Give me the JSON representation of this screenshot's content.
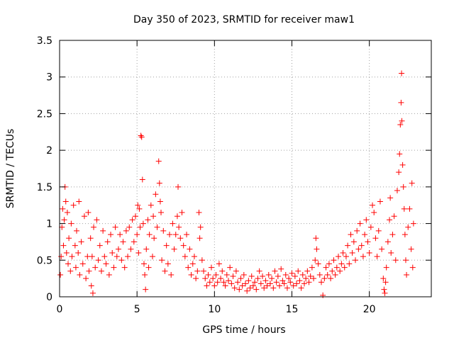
{
  "chart_data": {
    "type": "scatter",
    "title": "Day 350 of 2023, SRMTID for receiver maw1",
    "xlabel": "GPS time / hours",
    "ylabel": "SRMTID / TECUs",
    "xlim": [
      0,
      24
    ],
    "ylim": [
      0,
      3.5
    ],
    "xticks": [
      0,
      5,
      10,
      15,
      20
    ],
    "yticks": [
      0,
      0.5,
      1,
      1.5,
      2,
      2.5,
      3,
      3.5
    ],
    "grid": true,
    "marker": "plus",
    "series": [
      {
        "name": "maw1",
        "color": "#ff0000",
        "points": [
          [
            0.05,
            0.3
          ],
          [
            0.1,
            0.55
          ],
          [
            0.15,
            0.95
          ],
          [
            0.2,
            1.2
          ],
          [
            0.25,
            0.7
          ],
          [
            0.3,
            1.05
          ],
          [
            0.35,
            1.5
          ],
          [
            0.4,
            1.3
          ],
          [
            0.45,
            0.6
          ],
          [
            0.5,
            1.15
          ],
          [
            0.55,
            0.45
          ],
          [
            0.6,
            0.8
          ],
          [
            0.7,
            0.35
          ],
          [
            0.75,
            1.0
          ],
          [
            0.8,
            0.55
          ],
          [
            0.9,
            1.25
          ],
          [
            1.0,
            0.7
          ],
          [
            1.05,
            0.4
          ],
          [
            1.1,
            0.9
          ],
          [
            1.2,
            0.6
          ],
          [
            1.25,
            1.3
          ],
          [
            1.3,
            0.3
          ],
          [
            1.4,
            0.75
          ],
          [
            1.5,
            0.45
          ],
          [
            1.6,
            1.1
          ],
          [
            1.7,
            0.25
          ],
          [
            1.8,
            0.55
          ],
          [
            1.85,
            1.15
          ],
          [
            1.9,
            0.35
          ],
          [
            2.0,
            0.8
          ],
          [
            2.05,
            0.15
          ],
          [
            2.1,
            0.55
          ],
          [
            2.15,
            0.05
          ],
          [
            2.2,
            0.95
          ],
          [
            2.3,
            0.4
          ],
          [
            2.4,
            1.05
          ],
          [
            2.5,
            0.5
          ],
          [
            2.6,
            0.7
          ],
          [
            2.7,
            0.35
          ],
          [
            2.8,
            0.9
          ],
          [
            2.9,
            0.55
          ],
          [
            3.0,
            0.45
          ],
          [
            3.1,
            0.75
          ],
          [
            3.2,
            0.3
          ],
          [
            3.3,
            0.85
          ],
          [
            3.4,
            0.6
          ],
          [
            3.5,
            0.4
          ],
          [
            3.6,
            0.95
          ],
          [
            3.7,
            0.55
          ],
          [
            3.8,
            0.65
          ],
          [
            3.9,
            0.85
          ],
          [
            4.0,
            0.5
          ],
          [
            4.1,
            0.75
          ],
          [
            4.2,
            0.4
          ],
          [
            4.3,
            0.9
          ],
          [
            4.4,
            0.55
          ],
          [
            4.5,
            0.95
          ],
          [
            4.6,
            0.65
          ],
          [
            4.7,
            1.05
          ],
          [
            4.8,
            0.75
          ],
          [
            4.9,
            1.1
          ],
          [
            5.0,
            0.85
          ],
          [
            5.05,
            1.25
          ],
          [
            5.1,
            0.6
          ],
          [
            5.15,
            1.2
          ],
          [
            5.2,
            0.95
          ],
          [
            5.25,
            2.2
          ],
          [
            5.3,
            2.18
          ],
          [
            5.35,
            1.6
          ],
          [
            5.4,
            1.0
          ],
          [
            5.45,
            0.45
          ],
          [
            5.5,
            0.3
          ],
          [
            5.55,
            0.1
          ],
          [
            5.6,
            0.65
          ],
          [
            5.7,
            1.05
          ],
          [
            5.75,
            0.4
          ],
          [
            5.8,
            0.85
          ],
          [
            5.9,
            1.25
          ],
          [
            6.0,
            0.55
          ],
          [
            6.05,
            1.1
          ],
          [
            6.1,
            0.8
          ],
          [
            6.2,
            1.4
          ],
          [
            6.3,
            0.95
          ],
          [
            6.4,
            1.85
          ],
          [
            6.45,
            1.55
          ],
          [
            6.5,
            1.3
          ],
          [
            6.55,
            1.15
          ],
          [
            6.6,
            0.5
          ],
          [
            6.7,
            0.9
          ],
          [
            6.8,
            0.35
          ],
          [
            6.9,
            0.7
          ],
          [
            7.0,
            0.45
          ],
          [
            7.1,
            0.85
          ],
          [
            7.2,
            0.3
          ],
          [
            7.3,
            1.0
          ],
          [
            7.4,
            0.65
          ],
          [
            7.5,
            0.85
          ],
          [
            7.6,
            1.1
          ],
          [
            7.65,
            1.5
          ],
          [
            7.7,
            0.95
          ],
          [
            7.8,
            0.8
          ],
          [
            7.9,
            1.15
          ],
          [
            8.0,
            0.7
          ],
          [
            8.1,
            0.55
          ],
          [
            8.2,
            0.85
          ],
          [
            8.3,
            0.4
          ],
          [
            8.4,
            0.65
          ],
          [
            8.5,
            0.3
          ],
          [
            8.6,
            0.45
          ],
          [
            8.7,
            0.55
          ],
          [
            8.8,
            0.25
          ],
          [
            8.9,
            0.35
          ],
          [
            9.0,
            1.15
          ],
          [
            9.05,
            0.8
          ],
          [
            9.1,
            0.95
          ],
          [
            9.2,
            0.5
          ],
          [
            9.3,
            0.35
          ],
          [
            9.4,
            0.25
          ],
          [
            9.5,
            0.15
          ],
          [
            9.6,
            0.3
          ],
          [
            9.7,
            0.2
          ],
          [
            9.8,
            0.4
          ],
          [
            9.9,
            0.25
          ],
          [
            10.0,
            0.15
          ],
          [
            10.1,
            0.3
          ],
          [
            10.2,
            0.2
          ],
          [
            10.3,
            0.45
          ],
          [
            10.4,
            0.25
          ],
          [
            10.5,
            0.35
          ],
          [
            10.6,
            0.2
          ],
          [
            10.7,
            0.15
          ],
          [
            10.8,
            0.3
          ],
          [
            10.9,
            0.22
          ],
          [
            11.0,
            0.4
          ],
          [
            11.1,
            0.18
          ],
          [
            11.2,
            0.28
          ],
          [
            11.3,
            0.12
          ],
          [
            11.4,
            0.35
          ],
          [
            11.5,
            0.2
          ],
          [
            11.6,
            0.1
          ],
          [
            11.7,
            0.25
          ],
          [
            11.8,
            0.15
          ],
          [
            11.9,
            0.3
          ],
          [
            12.0,
            0.18
          ],
          [
            12.1,
            0.08
          ],
          [
            12.2,
            0.22
          ],
          [
            12.3,
            0.12
          ],
          [
            12.4,
            0.28
          ],
          [
            12.5,
            0.15
          ],
          [
            12.6,
            0.2
          ],
          [
            12.7,
            0.1
          ],
          [
            12.8,
            0.25
          ],
          [
            12.9,
            0.35
          ],
          [
            13.0,
            0.18
          ],
          [
            13.1,
            0.28
          ],
          [
            13.2,
            0.12
          ],
          [
            13.3,
            0.22
          ],
          [
            13.4,
            0.15
          ],
          [
            13.5,
            0.3
          ],
          [
            13.6,
            0.18
          ],
          [
            13.7,
            0.25
          ],
          [
            13.8,
            0.12
          ],
          [
            13.9,
            0.35
          ],
          [
            14.0,
            0.2
          ],
          [
            14.1,
            0.28
          ],
          [
            14.2,
            0.15
          ],
          [
            14.3,
            0.38
          ],
          [
            14.4,
            0.22
          ],
          [
            14.5,
            0.18
          ],
          [
            14.6,
            0.3
          ],
          [
            14.7,
            0.12
          ],
          [
            14.8,
            0.25
          ],
          [
            14.9,
            0.2
          ],
          [
            15.0,
            0.32
          ],
          [
            15.1,
            0.15
          ],
          [
            15.2,
            0.28
          ],
          [
            15.3,
            0.18
          ],
          [
            15.4,
            0.35
          ],
          [
            15.5,
            0.22
          ],
          [
            15.6,
            0.12
          ],
          [
            15.7,
            0.3
          ],
          [
            15.8,
            0.18
          ],
          [
            15.9,
            0.25
          ],
          [
            16.0,
            0.35
          ],
          [
            16.1,
            0.2
          ],
          [
            16.2,
            0.28
          ],
          [
            16.3,
            0.4
          ],
          [
            16.4,
            0.25
          ],
          [
            16.5,
            0.5
          ],
          [
            16.55,
            0.8
          ],
          [
            16.6,
            0.65
          ],
          [
            16.7,
            0.45
          ],
          [
            16.8,
            0.3
          ],
          [
            16.9,
            0.2
          ],
          [
            17.0,
            0.02
          ],
          [
            17.1,
            0.25
          ],
          [
            17.2,
            0.4
          ],
          [
            17.3,
            0.3
          ],
          [
            17.4,
            0.45
          ],
          [
            17.5,
            0.25
          ],
          [
            17.6,
            0.35
          ],
          [
            17.7,
            0.5
          ],
          [
            17.8,
            0.3
          ],
          [
            17.9,
            0.4
          ],
          [
            18.0,
            0.55
          ],
          [
            18.1,
            0.35
          ],
          [
            18.2,
            0.45
          ],
          [
            18.3,
            0.6
          ],
          [
            18.4,
            0.4
          ],
          [
            18.5,
            0.55
          ],
          [
            18.6,
            0.7
          ],
          [
            18.7,
            0.45
          ],
          [
            18.8,
            0.85
          ],
          [
            18.9,
            0.6
          ],
          [
            19.0,
            0.75
          ],
          [
            19.1,
            0.5
          ],
          [
            19.2,
            0.9
          ],
          [
            19.3,
            0.65
          ],
          [
            19.4,
            1.0
          ],
          [
            19.5,
            0.7
          ],
          [
            19.6,
            0.55
          ],
          [
            19.7,
            0.85
          ],
          [
            19.8,
            1.05
          ],
          [
            19.9,
            0.75
          ],
          [
            20.0,
            0.6
          ],
          [
            20.1,
            0.95
          ],
          [
            20.2,
            1.25
          ],
          [
            20.3,
            1.15
          ],
          [
            20.4,
            0.8
          ],
          [
            20.5,
            0.55
          ],
          [
            20.6,
            0.9
          ],
          [
            20.7,
            1.3
          ],
          [
            20.8,
            0.65
          ],
          [
            20.9,
            0.25
          ],
          [
            20.95,
            0.1
          ],
          [
            21.0,
            0.05
          ],
          [
            21.05,
            0.2
          ],
          [
            21.1,
            0.4
          ],
          [
            21.2,
            0.75
          ],
          [
            21.3,
            1.05
          ],
          [
            21.35,
            1.35
          ],
          [
            21.4,
            0.6
          ],
          [
            21.5,
            0.85
          ],
          [
            21.6,
            1.1
          ],
          [
            21.7,
            0.5
          ],
          [
            21.8,
            1.45
          ],
          [
            21.9,
            1.7
          ],
          [
            21.95,
            1.95
          ],
          [
            22.0,
            2.35
          ],
          [
            22.05,
            2.65
          ],
          [
            22.08,
            3.05
          ],
          [
            22.1,
            2.4
          ],
          [
            22.15,
            1.8
          ],
          [
            22.2,
            1.5
          ],
          [
            22.25,
            1.2
          ],
          [
            22.3,
            0.85
          ],
          [
            22.35,
            0.5
          ],
          [
            22.4,
            0.3
          ],
          [
            22.5,
            0.95
          ],
          [
            22.6,
            1.2
          ],
          [
            22.7,
            0.65
          ],
          [
            22.75,
            1.55
          ],
          [
            22.8,
            0.4
          ],
          [
            22.85,
            1.0
          ]
        ]
      }
    ]
  }
}
